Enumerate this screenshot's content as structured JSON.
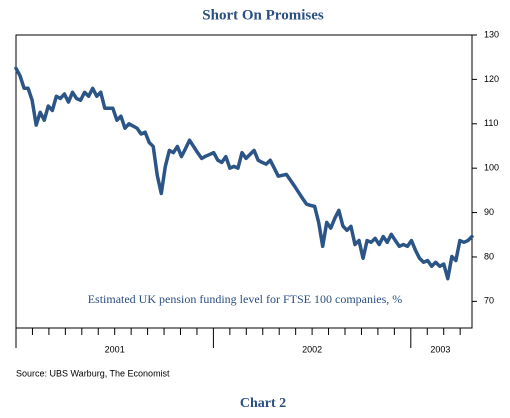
{
  "chart_data": {
    "type": "line",
    "title": "Short On Promises",
    "annotation": "Estimated UK pension funding level for FTSE 100 companies, %",
    "source": "Source: UBS Warburg, The Economist",
    "footer": "Chart 2",
    "color": "#2c5587",
    "ylim": [
      64,
      130
    ],
    "yticks": [
      70,
      80,
      90,
      100,
      110,
      120,
      130
    ],
    "xlim": [
      2001,
      2003.31
    ],
    "xticks": [
      {
        "value": 2001.5,
        "label": "2001"
      },
      {
        "value": 2002.5,
        "label": "2002"
      },
      {
        "value": 2003.15,
        "label": "2003"
      }
    ],
    "grid": false,
    "values": [
      122.5,
      120.8,
      118,
      118,
      115.3,
      109.7,
      112.6,
      110.8,
      114,
      113,
      116.2,
      115.7,
      116.7,
      114.9,
      117.1,
      115.7,
      115.3,
      117.1,
      116.2,
      118,
      116.2,
      117.1,
      113.5,
      113.5,
      113.5,
      110.8,
      111.7,
      109,
      110,
      109.5,
      109,
      107.7,
      108.1,
      105.8,
      104.9,
      98.4,
      94.3,
      100.4,
      104,
      103.5,
      104.9,
      102.6,
      104.4,
      106.3,
      104.9,
      103.5,
      102.2,
      102.7,
      103.1,
      103.5,
      101.8,
      101.3,
      102.6,
      100,
      100.4,
      100,
      103.5,
      102.2,
      103.1,
      104,
      101.8,
      101.3,
      100.9,
      101.8,
      100,
      98.2,
      98.4,
      98.6,
      97.3,
      96,
      94.6,
      93.2,
      91.9,
      91.6,
      91.4,
      87.8,
      82.4,
      87.8,
      86.5,
      88.7,
      90.5,
      87,
      86,
      86.9,
      82.8,
      83.7,
      79.7,
      83.7,
      83.3,
      84.2,
      82.8,
      84.6,
      83.3,
      85.1,
      83.7,
      82.4,
      82.8,
      82.4,
      83.7,
      81.5,
      79.7,
      78.8,
      79.2,
      77.9,
      78.8,
      77.9,
      78.4,
      75.1,
      80.1,
      79.2,
      83.7,
      83.3,
      83.7,
      84.6
    ]
  }
}
